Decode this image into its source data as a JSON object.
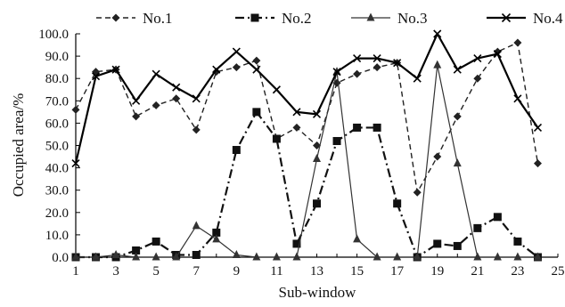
{
  "chart_data": {
    "type": "line",
    "title": "",
    "xlabel": "Sub-window",
    "ylabel": "Occupied area/%",
    "xlim": [
      1,
      25
    ],
    "ylim": [
      0,
      100
    ],
    "x_ticks": [
      1,
      3,
      5,
      7,
      9,
      11,
      13,
      15,
      17,
      19,
      21,
      23,
      25
    ],
    "y_ticks": [
      "0.0",
      "10.0",
      "20.0",
      "30.0",
      "40.0",
      "50.0",
      "60.0",
      "70.0",
      "80.0",
      "90.0",
      "100.0"
    ],
    "grid": false,
    "legend_position": "top",
    "x": [
      1,
      2,
      3,
      4,
      5,
      6,
      7,
      8,
      9,
      10,
      11,
      12,
      13,
      14,
      15,
      16,
      17,
      18,
      19,
      20,
      21,
      22,
      23,
      24
    ],
    "series": [
      {
        "name": "No.1",
        "color": "#222222",
        "line": "dashed",
        "marker": "diamond",
        "values": [
          66,
          83,
          84,
          63,
          68,
          71,
          57,
          83,
          85,
          88,
          53,
          58,
          50,
          78,
          82,
          85,
          87,
          29,
          45,
          63,
          80,
          92,
          96,
          42
        ]
      },
      {
        "name": "No.2",
        "color": "#111111",
        "line": "dashdot",
        "marker": "square",
        "values": [
          0,
          0,
          0,
          3,
          7,
          1,
          1,
          11,
          48,
          65,
          53,
          6,
          24,
          52,
          58,
          58,
          24,
          0,
          6,
          5,
          13,
          18,
          7,
          0
        ]
      },
      {
        "name": "No.3",
        "color": "#333333",
        "line": "solid",
        "marker": "triangle",
        "values": [
          0,
          0,
          1,
          0,
          0,
          0,
          14,
          8,
          1,
          0,
          0,
          0,
          44,
          83,
          8,
          0,
          0,
          0,
          86,
          42,
          0,
          0,
          0,
          0
        ]
      },
      {
        "name": "No.4",
        "color": "#000000",
        "line": "solid-bold",
        "marker": "x",
        "values": [
          42,
          81,
          84,
          70,
          82,
          76,
          71,
          84,
          92,
          84,
          75,
          65,
          64,
          83,
          89,
          89,
          87,
          80,
          100,
          84,
          89,
          91,
          71,
          58
        ]
      }
    ]
  }
}
